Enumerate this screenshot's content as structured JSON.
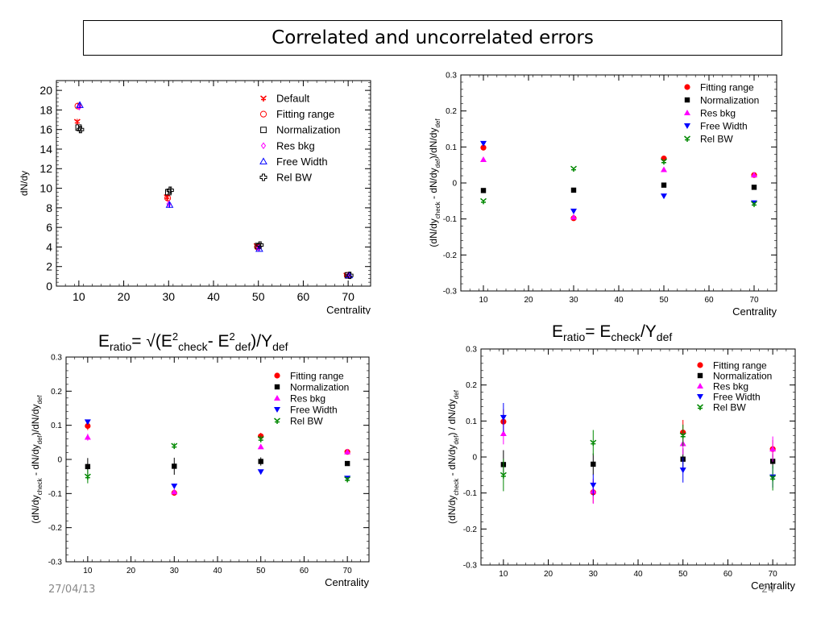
{
  "slide": {
    "title": "Correlated and uncorrelated errors",
    "date": "27/04/13",
    "page_number": "24"
  },
  "formula_left": {
    "lhs": "E",
    "lhs_sub": "ratio",
    "eq": "= √(E",
    "sup1": "2",
    "sub1": "check",
    "minus": "- E",
    "sup2": "2",
    "sub2": "def",
    "rest": ")/Y",
    "sub3": "def"
  },
  "formula_right": {
    "lhs": "E",
    "lhs_sub": "ratio",
    "eq": "= E",
    "sub1": "check",
    "rest": "/Y",
    "sub2": "def"
  },
  "colors": {
    "red": "#ff0000",
    "black": "#000000",
    "magenta": "#ff00ff",
    "blue": "#0000ff",
    "green": "#008800",
    "pink": "#ff3399"
  },
  "chart_data": [
    {
      "type": "scatter",
      "id": "tl",
      "xlabel": "Centrality",
      "ylabel": "dN/dy",
      "xlim": [
        5,
        75
      ],
      "ylim": [
        0,
        21
      ],
      "xticks": [
        10,
        20,
        30,
        40,
        50,
        60,
        70
      ],
      "yticks": [
        0,
        2,
        4,
        6,
        8,
        10,
        12,
        14,
        16,
        18,
        20
      ],
      "legend": "top-right",
      "series": [
        {
          "name": "Default",
          "marker": "star",
          "color": "#ff0000",
          "x": [
            10,
            30,
            50,
            70
          ],
          "y": [
            16.8,
            9.1,
            4.1,
            1.1
          ],
          "err": [
            0.3,
            0.3,
            0.2,
            0.1
          ]
        },
        {
          "name": "Fitting range",
          "marker": "circle-open",
          "color": "#ff0000",
          "x": [
            10,
            30,
            50,
            70
          ],
          "y": [
            18.4,
            9.0,
            4.0,
            1.1
          ],
          "err": [
            0.3,
            0.3,
            0.2,
            0.1
          ]
        },
        {
          "name": "Normalization",
          "marker": "square-open",
          "color": "#000000",
          "x": [
            10,
            30,
            50,
            70
          ],
          "y": [
            16.2,
            9.6,
            4.1,
            1.1
          ],
          "err": [
            0.3,
            0.3,
            0.2,
            0.1
          ]
        },
        {
          "name": "Res bkg",
          "marker": "diamond-open",
          "color": "#ff00ff",
          "x": [
            10,
            30,
            50,
            70
          ],
          "y": [
            18.3,
            8.4,
            3.9,
            1.1
          ],
          "err": [
            0.3,
            0.3,
            0.2,
            0.1
          ]
        },
        {
          "name": "Free Width",
          "marker": "triangle-open",
          "color": "#0000ff",
          "x": [
            10,
            30,
            50,
            70
          ],
          "y": [
            18.5,
            8.3,
            3.8,
            1.1
          ],
          "err": [
            0.3,
            0.3,
            0.2,
            0.1
          ]
        },
        {
          "name": "Rel BW",
          "marker": "cross-open",
          "color": "#000000",
          "x": [
            10,
            30,
            50,
            70
          ],
          "y": [
            16.0,
            9.8,
            4.2,
            1.1
          ],
          "err": [
            0.3,
            0.3,
            0.2,
            0.1
          ]
        }
      ]
    },
    {
      "type": "scatter",
      "id": "tr",
      "xlabel": "Centrality",
      "ylabel": "(dN/dy_check - dN/dy_def)/dN/dy_def",
      "ylabel_parts": {
        "a": "(dN/dy",
        "b": "check",
        "c": " - dN/dy",
        "d": "def",
        "e": ")/dN/dy",
        "f": "def"
      },
      "xlim": [
        5,
        75
      ],
      "ylim": [
        -0.3,
        0.3
      ],
      "xticks": [
        10,
        20,
        30,
        40,
        50,
        60,
        70
      ],
      "yticks": [
        -0.3,
        -0.2,
        -0.1,
        0,
        0.1,
        0.2,
        0.3
      ],
      "legend": "top-right",
      "series": [
        {
          "name": "Fitting range",
          "marker": "circle",
          "color": "#ff0000",
          "x": [
            10,
            30,
            50,
            70
          ],
          "y": [
            0.098,
            -0.098,
            0.068,
            0.022
          ]
        },
        {
          "name": "Normalization",
          "marker": "square",
          "color": "#000000",
          "x": [
            10,
            30,
            50,
            70
          ],
          "y": [
            -0.021,
            -0.02,
            -0.006,
            -0.012
          ]
        },
        {
          "name": "Res bkg",
          "marker": "triangle",
          "color": "#ff00ff",
          "x": [
            10,
            30,
            50,
            70
          ],
          "y": [
            0.065,
            -0.095,
            0.037,
            0.022
          ]
        },
        {
          "name": "Free Width",
          "marker": "triangle-down",
          "color": "#0000ff",
          "x": [
            10,
            30,
            50,
            70
          ],
          "y": [
            0.11,
            -0.078,
            -0.036,
            -0.055
          ]
        },
        {
          "name": "Rel BW",
          "marker": "star",
          "color": "#008800",
          "x": [
            10,
            30,
            50,
            70
          ],
          "y": [
            -0.05,
            0.04,
            0.06,
            -0.058
          ]
        }
      ]
    },
    {
      "type": "scatter",
      "id": "bl",
      "xlabel": "Centrality",
      "ylabel": "(dN/dy_check - dN/dy_def)/dN/dy_def",
      "ylabel_parts": {
        "a": "(dN/dy",
        "b": "check",
        "c": " - dN/dy",
        "d": "def",
        "e": ")/dN/dy",
        "f": "def"
      },
      "xlim": [
        5,
        75
      ],
      "ylim": [
        -0.3,
        0.3
      ],
      "xticks": [
        10,
        20,
        30,
        40,
        50,
        60,
        70
      ],
      "yticks": [
        -0.3,
        -0.2,
        -0.1,
        0,
        0.1,
        0.2,
        0.3
      ],
      "legend": "top-right",
      "series": [
        {
          "name": "Fitting range",
          "marker": "circle",
          "color": "#ff0000",
          "x": [
            10,
            30,
            50,
            70
          ],
          "y": [
            0.098,
            -0.098,
            0.068,
            0.022
          ],
          "err": [
            0.012,
            0.008,
            0.01,
            0.006
          ]
        },
        {
          "name": "Normalization",
          "marker": "square",
          "color": "#000000",
          "x": [
            10,
            30,
            50,
            70
          ],
          "y": [
            -0.021,
            -0.02,
            -0.006,
            -0.012
          ],
          "err": [
            0.025,
            0.025,
            0.012,
            0.006
          ]
        },
        {
          "name": "Res bkg",
          "marker": "triangle",
          "color": "#ff00ff",
          "x": [
            10,
            30,
            50,
            70
          ],
          "y": [
            0.065,
            -0.095,
            0.037,
            0.022
          ],
          "err": [
            0.01,
            0.008,
            0.006,
            0.006
          ]
        },
        {
          "name": "Free Width",
          "marker": "triangle-down",
          "color": "#0000ff",
          "x": [
            10,
            30,
            50,
            70
          ],
          "y": [
            0.11,
            -0.078,
            -0.036,
            -0.055
          ],
          "err": [
            0.006,
            0.006,
            0.006,
            0.006
          ]
        },
        {
          "name": "Rel BW",
          "marker": "star",
          "color": "#008800",
          "x": [
            10,
            30,
            50,
            70
          ],
          "y": [
            -0.05,
            0.04,
            0.06,
            -0.058
          ],
          "err": [
            0.02,
            0.008,
            0.01,
            0.006
          ]
        }
      ]
    },
    {
      "type": "scatter",
      "id": "br",
      "xlabel": "Centrality",
      "ylabel": "(dN/dy_check - dN/dy_def) / dN/dy_def",
      "ylabel_parts": {
        "a": "(dN/dy",
        "b": "check",
        "c": " - dN/dy",
        "d": "def",
        "e": ") / dN/dy",
        "f": "def"
      },
      "xlim": [
        5,
        75
      ],
      "ylim": [
        -0.3,
        0.3
      ],
      "xticks": [
        10,
        20,
        30,
        40,
        50,
        60,
        70
      ],
      "yticks": [
        -0.3,
        -0.2,
        -0.1,
        0,
        0.1,
        0.2,
        0.3
      ],
      "legend": "top-right",
      "series": [
        {
          "name": "Fitting range",
          "marker": "circle",
          "color": "#ff0000",
          "x": [
            10,
            30,
            50,
            70
          ],
          "y": [
            0.098,
            -0.098,
            0.068,
            0.022
          ],
          "err": [
            0.035,
            0.03,
            0.035,
            0.025
          ]
        },
        {
          "name": "Normalization",
          "marker": "square",
          "color": "#000000",
          "x": [
            10,
            30,
            50,
            70
          ],
          "y": [
            -0.021,
            -0.02,
            -0.006,
            -0.012
          ],
          "err": [
            0.04,
            0.03,
            0.03,
            0.02
          ]
        },
        {
          "name": "Res bkg",
          "marker": "triangle",
          "color": "#ff00ff",
          "x": [
            10,
            30,
            50,
            70
          ],
          "y": [
            0.065,
            -0.095,
            0.037,
            0.022
          ],
          "err": [
            0.03,
            0.035,
            0.03,
            0.035
          ]
        },
        {
          "name": "Free Width",
          "marker": "triangle-down",
          "color": "#0000ff",
          "x": [
            10,
            30,
            50,
            70
          ],
          "y": [
            0.11,
            -0.078,
            -0.036,
            -0.055
          ],
          "err": [
            0.04,
            0.03,
            0.035,
            0.03
          ]
        },
        {
          "name": "Rel BW",
          "marker": "star",
          "color": "#008800",
          "x": [
            10,
            30,
            50,
            70
          ],
          "y": [
            -0.05,
            0.04,
            0.06,
            -0.058
          ],
          "err": [
            0.045,
            0.035,
            0.03,
            0.035
          ]
        }
      ]
    }
  ]
}
